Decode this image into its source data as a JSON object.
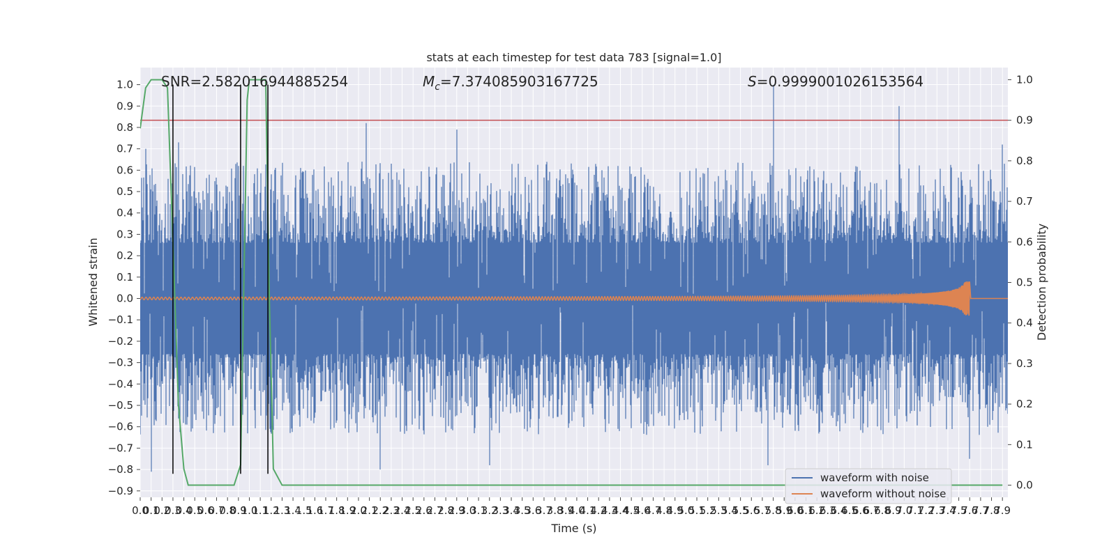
{
  "chart_data": {
    "type": "line",
    "title": "stats at each timestep for test data 783 [signal=1.0]",
    "xlabel": "Time (s)",
    "ylabel": "Whitened strain",
    "y2label": "Detection probability",
    "xlim": [
      0,
      7.95
    ],
    "ylim": [
      -0.93,
      1.08
    ],
    "y2lim": [
      -0.03,
      1.03
    ],
    "x_ticks": [
      "0.0",
      "0.1",
      "0.2",
      "0.3",
      "0.4",
      "0.5",
      "0.6",
      "0.7",
      "0.8",
      "0.9",
      "1.0",
      "1.1",
      "1.2",
      "1.3",
      "1.4",
      "1.5",
      "1.6",
      "1.7",
      "1.8",
      "1.9",
      "2.0",
      "2.1",
      "2.2",
      "2.3",
      "2.4",
      "2.5",
      "2.6",
      "2.7",
      "2.8",
      "2.9",
      "3.0",
      "3.1",
      "3.2",
      "3.3",
      "3.4",
      "3.5",
      "3.6",
      "3.7",
      "3.8",
      "3.9",
      "4.0",
      "4.1",
      "4.2",
      "4.3",
      "4.4",
      "4.5",
      "4.6",
      "4.7",
      "4.8",
      "4.9",
      "5.0",
      "5.1",
      "5.2",
      "5.3",
      "5.4",
      "5.5",
      "5.6",
      "5.7",
      "5.8",
      "5.9",
      "6.0",
      "6.1",
      "6.2",
      "6.3",
      "6.4",
      "6.5",
      "6.6",
      "6.7",
      "6.8",
      "6.9",
      "7.0",
      "7.1",
      "7.2",
      "7.3",
      "7.4",
      "7.5",
      "7.6",
      "7.7",
      "7.8",
      "7.9"
    ],
    "y_ticks": [
      "1.0",
      "0.9",
      "0.8",
      "0.7",
      "0.6",
      "0.5",
      "0.4",
      "0.3",
      "0.2",
      "0.1",
      "0.0",
      "−0.1",
      "−0.2",
      "−0.3",
      "−0.4",
      "−0.5",
      "−0.6",
      "−0.7",
      "−0.8",
      "−0.9"
    ],
    "y2_ticks": [
      "1.0",
      "0.9",
      "0.8",
      "0.7",
      "0.6",
      "0.5",
      "0.4",
      "0.3",
      "0.2",
      "0.1",
      "0.0"
    ],
    "annotations": {
      "snr": "SNR=2.582016944885254",
      "mc_symbol": "M",
      "mc_sub": "c",
      "mc_value": "=7.374085903167725",
      "s_symbol": "S",
      "s_value": "=0.9999001026153564"
    },
    "legend": {
      "placement": "lower-right",
      "entries": [
        "waveform with noise",
        "waveform without noise"
      ]
    },
    "grid": true,
    "threshold": {
      "axis": "right",
      "value": 0.9,
      "color": "#c44e52"
    },
    "vlines": [
      0.3,
      0.92,
      1.17
    ],
    "series": [
      {
        "name": "waveform with noise",
        "axis": "left",
        "color": "#4c72b0",
        "kind": "noise",
        "peaks": [
          [
            0.05,
            0.7
          ],
          [
            0.35,
            0.73
          ],
          [
            0.9,
            0.62
          ],
          [
            2.07,
            0.82
          ],
          [
            2.9,
            0.79
          ],
          [
            5.8,
            1.0
          ],
          [
            6.95,
            0.9
          ],
          [
            7.9,
            0.72
          ],
          [
            0.1,
            -0.81
          ],
          [
            1.19,
            -0.61
          ],
          [
            2.2,
            -0.8
          ],
          [
            3.2,
            -0.78
          ],
          [
            5.75,
            -0.78
          ],
          [
            7.6,
            -0.75
          ]
        ]
      },
      {
        "name": "waveform without noise",
        "axis": "left",
        "color": "#dd8452",
        "kind": "chirp",
        "merger_time": 7.6,
        "peak_amplitude": 0.08
      },
      {
        "axis": "right",
        "color": "#55a868",
        "kind": "probability",
        "x": [
          0.0,
          0.05,
          0.1,
          0.15,
          0.2,
          0.25,
          0.3,
          0.35,
          0.4,
          0.44,
          0.5,
          0.6,
          0.7,
          0.8,
          0.86,
          0.92,
          0.95,
          0.98,
          1.0,
          1.05,
          1.1,
          1.15,
          1.18,
          1.22,
          1.3,
          1.4,
          1.6,
          2.0,
          3.0,
          4.0,
          4.8,
          5.0,
          6.0,
          7.0,
          7.9
        ],
        "values": [
          0.88,
          0.98,
          1.0,
          1.0,
          1.0,
          0.98,
          0.6,
          0.2,
          0.04,
          0.0,
          0.0,
          0.0,
          0.0,
          0.0,
          0.0,
          0.05,
          0.5,
          0.95,
          1.0,
          1.0,
          1.0,
          1.0,
          0.5,
          0.04,
          0.0,
          0.0,
          0.0,
          0.0,
          0.0,
          0.0,
          0.0,
          0.0,
          0.0,
          0.0,
          0.0
        ]
      }
    ]
  }
}
